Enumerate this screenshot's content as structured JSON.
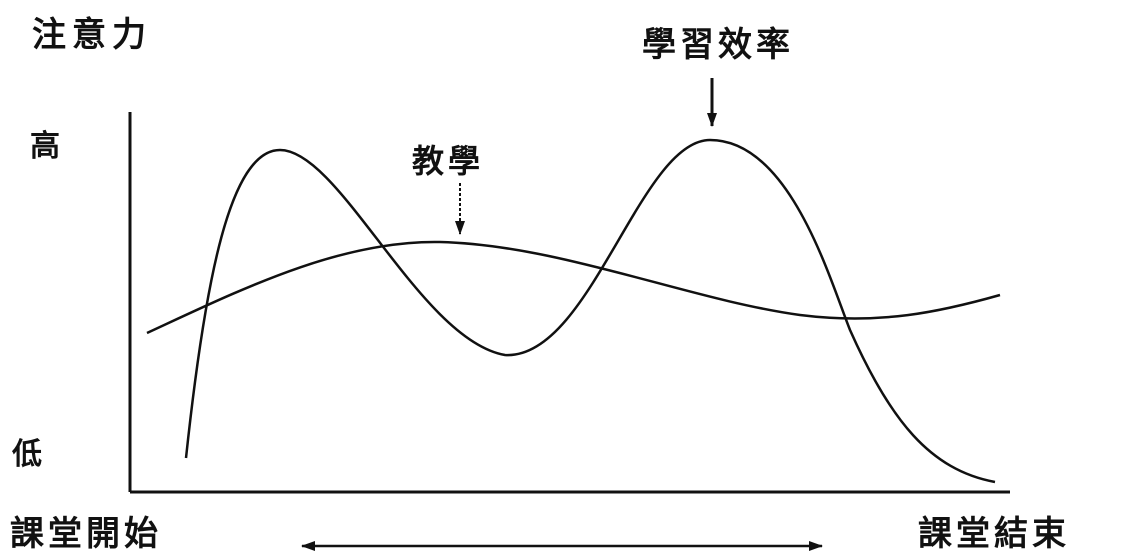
{
  "labels": {
    "y_axis": "注意力",
    "high": "高",
    "low": "低",
    "start": "課堂開始",
    "end": "課堂結束"
  },
  "annotations": {
    "learning_effect": "學習效率",
    "teaching": "教學"
  },
  "colors": {
    "ink": "#111111",
    "background": "#ffffff"
  }
}
